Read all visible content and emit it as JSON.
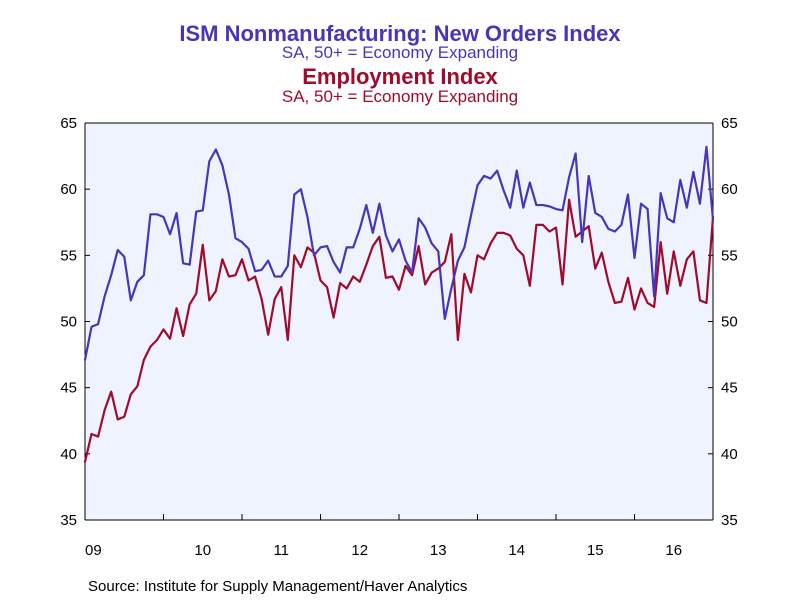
{
  "colors": {
    "background": "#ffffff",
    "plot_background": "#eef3fd",
    "new_orders": "#4a34b8",
    "employment": "#a00b2c",
    "axis": "#000000"
  },
  "source": "Source:  Institute for Supply Management/Haver Analytics",
  "chart_data": {
    "type": "line",
    "titles": [
      {
        "text": "ISM Nonmanufacturing: New Orders Index",
        "series": "new_orders"
      },
      {
        "text": "SA, 50+ = Economy Expanding",
        "series": "new_orders"
      },
      {
        "text": "Employment Index",
        "series": "employment"
      },
      {
        "text": "SA, 50+ = Economy Expanding",
        "series": "employment"
      }
    ],
    "x": {
      "unit": "month",
      "start": "2009-01",
      "end": "2016-12",
      "tick_labels": [
        "09",
        "10",
        "11",
        "12",
        "13",
        "14",
        "15",
        "16"
      ]
    },
    "y": {
      "ylim": [
        35,
        65
      ],
      "ticks": [
        35,
        40,
        45,
        50,
        55,
        60,
        65
      ],
      "left_axis": true,
      "right_axis": true
    },
    "grid": false,
    "series": [
      {
        "key": "new_orders",
        "color": "#4a34b8",
        "values": [
          47.1,
          49.6,
          49.8,
          51.9,
          53.5,
          55.4,
          54.9,
          51.6,
          53.0,
          53.5,
          58.1,
          58.1,
          57.9,
          56.6,
          58.2,
          54.4,
          54.3,
          58.3,
          58.4,
          62.1,
          63.0,
          61.8,
          59.6,
          56.3,
          56.0,
          55.5,
          53.8,
          53.9,
          54.6,
          53.4,
          53.4,
          54.2,
          59.6,
          60.0,
          57.9,
          55.0,
          55.6,
          55.7,
          54.5,
          53.7,
          55.6,
          55.6,
          57.0,
          58.8,
          56.7,
          58.9,
          56.5,
          55.3,
          56.2,
          54.6,
          53.7,
          57.8,
          57.1,
          55.9,
          55.3,
          50.2,
          52.5,
          54.6,
          55.6,
          58.0,
          60.3,
          61.0,
          60.8,
          61.4,
          59.9,
          58.6,
          61.4,
          58.6,
          60.5,
          58.8,
          58.8,
          58.7,
          58.5,
          58.4,
          60.9,
          62.7,
          56.0,
          61.0,
          58.2,
          57.9,
          57.0,
          56.8,
          57.3,
          59.6,
          54.8,
          58.9,
          58.5,
          51.9,
          59.7,
          57.8,
          57.5,
          60.7,
          58.6,
          61.3,
          58.9,
          63.2,
          57.7
        ]
      },
      {
        "key": "employment",
        "color": "#a00b2c",
        "values": [
          39.4,
          41.5,
          41.3,
          43.3,
          44.7,
          42.6,
          42.8,
          44.5,
          45.1,
          47.1,
          48.1,
          48.6,
          49.4,
          48.7,
          51.0,
          48.9,
          51.3,
          52.1,
          55.8,
          51.6,
          52.3,
          54.7,
          53.4,
          53.5,
          54.7,
          53.1,
          53.4,
          51.7,
          49.0,
          51.7,
          52.6,
          48.6,
          55.0,
          54.1,
          55.6,
          55.2,
          53.1,
          52.6,
          50.3,
          52.9,
          52.5,
          53.4,
          53.0,
          54.3,
          55.7,
          56.4,
          53.3,
          53.4,
          52.4,
          54.2,
          53.5,
          55.7,
          52.8,
          53.7,
          54.0,
          54.5,
          56.6,
          48.6,
          53.6,
          52.2,
          55.0,
          54.7,
          55.9,
          56.7,
          56.7,
          56.5,
          55.5,
          55.0,
          52.7,
          57.3,
          57.3,
          56.8,
          57.1,
          52.8,
          59.2,
          56.4,
          56.8,
          57.2,
          54.0,
          55.2,
          53.0,
          51.4,
          51.5,
          53.3,
          50.9,
          52.5,
          51.4,
          51.1,
          56.0,
          52.1,
          55.3,
          52.7,
          54.7,
          55.3,
          51.6,
          51.4,
          57.9
        ]
      }
    ]
  }
}
